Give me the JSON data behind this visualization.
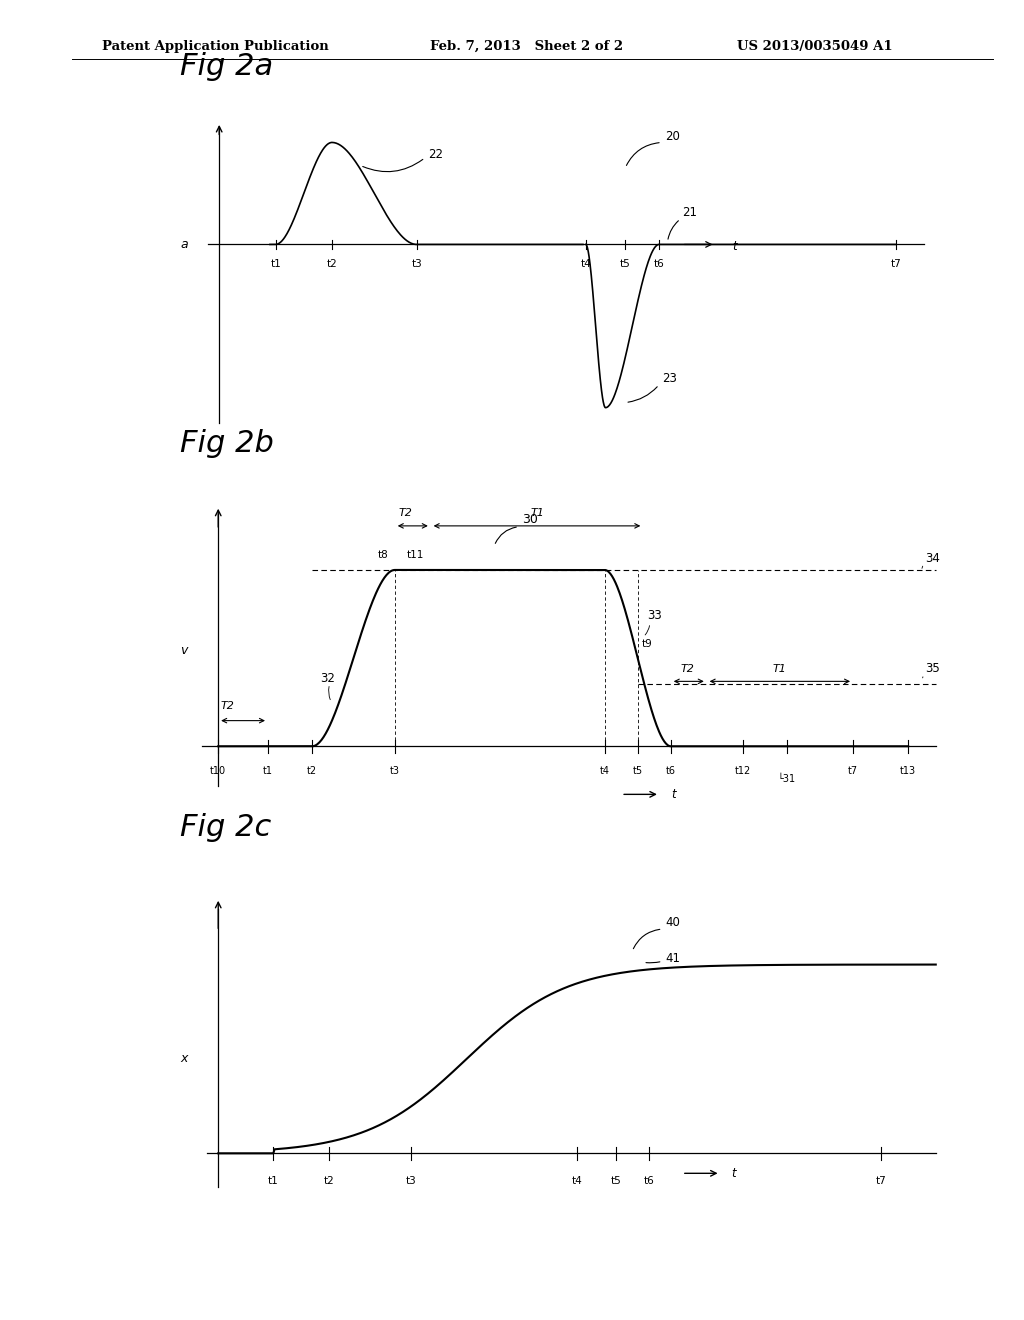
{
  "bg_color": "#ffffff",
  "header_left": "Patent Application Publication",
  "header_mid": "Feb. 7, 2013   Sheet 2 of 2",
  "header_right": "US 2013/0035049 A1",
  "fig2a_title": "Fig 2a",
  "fig2b_title": "Fig 2b",
  "fig2c_title": "Fig 2c",
  "ylabel_2a": "a",
  "ylabel_2b": "v",
  "ylabel_2c": "x",
  "text_color": "#000000",
  "line_color": "#000000"
}
